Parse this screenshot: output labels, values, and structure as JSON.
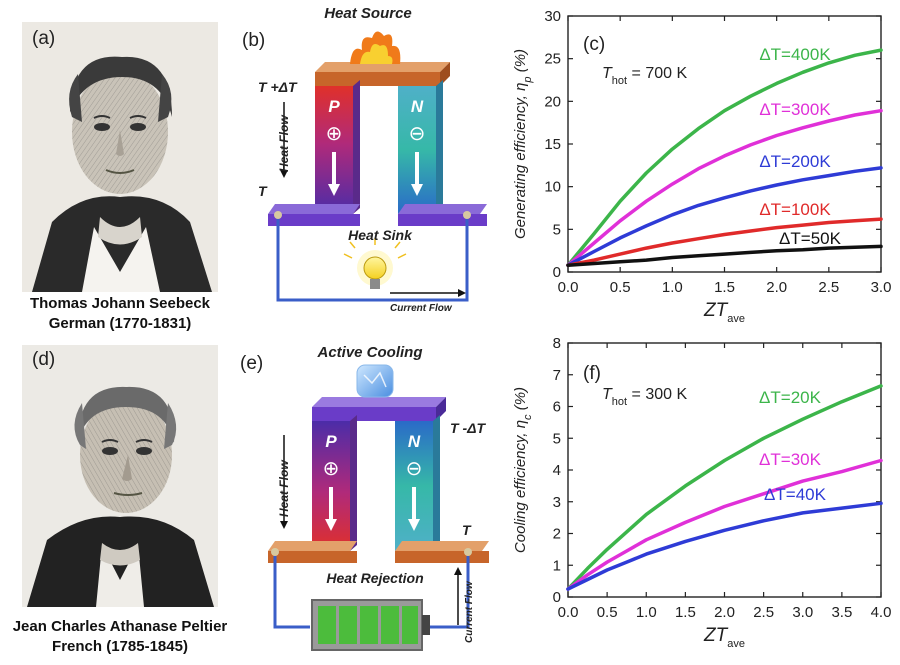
{
  "panels": {
    "a": {
      "label": "(a)",
      "caption_name": "Thomas Johann Seebeck",
      "caption_info": "German (1770-1831)"
    },
    "b": {
      "label": "(b)",
      "top_label": "Heat Source",
      "hot_label": "T +ΔT",
      "cold_label": "T",
      "heat_flow": "Heat Flow",
      "p_leg": "P",
      "n_leg": "N",
      "p_sign": "⊕",
      "n_sign": "⊖",
      "bottom_label": "Heat Sink",
      "current_flow": "Current Flow"
    },
    "d": {
      "label": "(d)",
      "caption_name": "Jean Charles Athanase Peltier",
      "caption_info": "French (1785-1845)"
    },
    "e": {
      "label": "(e)",
      "top_label": "Active Cooling",
      "cold_label": "T -ΔT",
      "hot_label": "T",
      "heat_flow": "Heat Flow",
      "p_leg": "P",
      "n_leg": "N",
      "p_sign": "⊕",
      "n_sign": "⊖",
      "bottom_label": "Heat Rejection",
      "current_flow": "Current Flow"
    }
  },
  "chart_data": [
    {
      "id": "c",
      "type": "line",
      "panel_label": "(c)",
      "annotation": "T_hot = 700 K",
      "annotation_main": "T",
      "annotation_sub": "hot",
      "annotation_rest": " = 700 K",
      "ylabel_main": "Generating efficiency, η",
      "ylabel_sub": "p",
      "ylabel_rest": " (%)",
      "xlabel_main": "ZT",
      "xlabel_sub": "ave",
      "xlim": [
        0,
        3.0
      ],
      "ylim": [
        0,
        30
      ],
      "xticks": [
        "0.0",
        "0.5",
        "1.0",
        "1.5",
        "2.0",
        "2.5",
        "3.0"
      ],
      "yticks": [
        "0",
        "5",
        "10",
        "15",
        "20",
        "25",
        "30"
      ],
      "x": [
        0,
        0.25,
        0.5,
        0.75,
        1.0,
        1.25,
        1.5,
        1.75,
        2.0,
        2.25,
        2.5,
        2.75,
        3.0
      ],
      "series": [
        {
          "name": "ΔT=400K",
          "color": "#3cb54a",
          "values": [
            0.8,
            4.5,
            8.3,
            11.6,
            14.4,
            16.8,
            18.9,
            20.6,
            22.1,
            23.4,
            24.5,
            25.4,
            26.0
          ]
        },
        {
          "name": "ΔT=300K",
          "color": "#e030d8",
          "values": [
            0.8,
            3.4,
            6.0,
            8.3,
            10.3,
            12.1,
            13.6,
            14.9,
            16.0,
            16.9,
            17.7,
            18.4,
            18.9
          ]
        },
        {
          "name": "ΔT=200K",
          "color": "#2e3bd6",
          "values": [
            0.8,
            2.4,
            4.0,
            5.4,
            6.7,
            7.8,
            8.7,
            9.5,
            10.2,
            10.8,
            11.3,
            11.8,
            12.2
          ]
        },
        {
          "name": "ΔT=100K",
          "color": "#e02a2a",
          "values": [
            0.8,
            1.4,
            2.1,
            2.8,
            3.4,
            3.9,
            4.4,
            4.8,
            5.2,
            5.5,
            5.8,
            6.0,
            6.2
          ]
        },
        {
          "name": "ΔT=50K",
          "color": "#111111",
          "values": [
            0.8,
            1.0,
            1.2,
            1.4,
            1.7,
            1.9,
            2.1,
            2.3,
            2.5,
            2.6,
            2.8,
            2.9,
            3.0
          ]
        }
      ]
    },
    {
      "id": "f",
      "type": "line",
      "panel_label": "(f)",
      "annotation": "T_hot = 300 K",
      "annotation_main": "T",
      "annotation_sub": "hot",
      "annotation_rest": " = 300 K",
      "ylabel_main": "Cooling efficiency, η",
      "ylabel_sub": "c",
      "ylabel_rest": " (%)",
      "xlabel_main": "ZT",
      "xlabel_sub": "ave",
      "xlim": [
        0,
        4.0
      ],
      "ylim": [
        0,
        8
      ],
      "xticks": [
        "0.0",
        "0.5",
        "1.0",
        "1.5",
        "2.0",
        "2.5",
        "3.0",
        "3.5",
        "4.0"
      ],
      "yticks": [
        "0",
        "1",
        "2",
        "3",
        "4",
        "5",
        "6",
        "7",
        "8"
      ],
      "x": [
        0,
        0.25,
        0.5,
        0.75,
        1.0,
        1.5,
        2.0,
        2.5,
        3.0,
        3.5,
        4.0
      ],
      "series": [
        {
          "name": "ΔT=20K",
          "color": "#3cb54a",
          "values": [
            0.25,
            0.9,
            1.5,
            2.05,
            2.6,
            3.5,
            4.3,
            5.0,
            5.6,
            6.15,
            6.65
          ]
        },
        {
          "name": "ΔT=30K",
          "color": "#e030d8",
          "values": [
            0.25,
            0.7,
            1.1,
            1.45,
            1.8,
            2.35,
            2.85,
            3.25,
            3.65,
            3.95,
            4.3
          ]
        },
        {
          "name": "ΔT=40K",
          "color": "#2e3bd6",
          "values": [
            0.25,
            0.55,
            0.85,
            1.1,
            1.35,
            1.75,
            2.1,
            2.4,
            2.65,
            2.8,
            2.95
          ]
        }
      ]
    }
  ]
}
